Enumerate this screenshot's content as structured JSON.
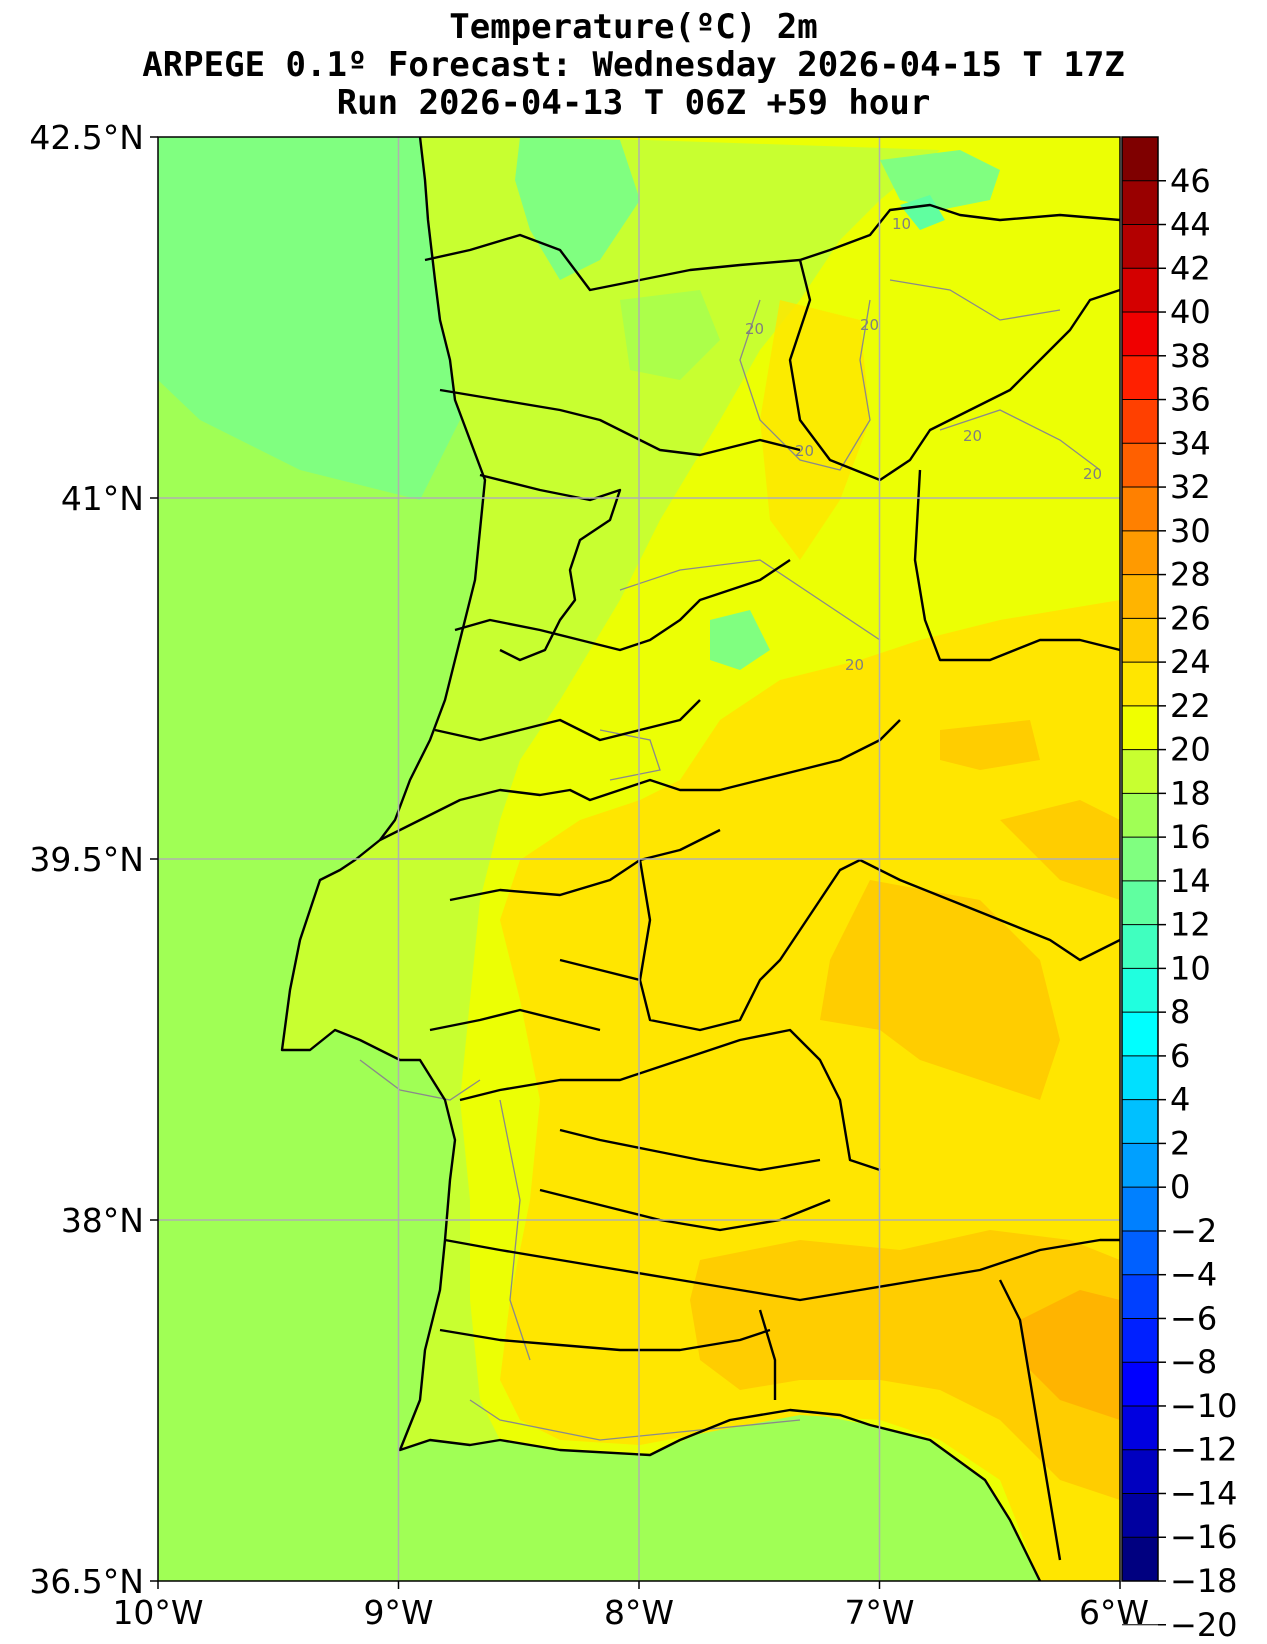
{
  "title": {
    "line1": "Temperature(ºC) 2m",
    "line2": "ARPEGE 0.1º Forecast: Wednesday 2026-04-15 T 17Z",
    "line3": "Run 2026-04-13 T 06Z +59 hour"
  },
  "axes": {
    "lat_ticks": [
      "42.5°N",
      "41°N",
      "39.5°N",
      "38°N",
      "36.5°N"
    ],
    "lon_ticks": [
      "10°W",
      "9°W",
      "8°W",
      "7°W",
      "6°W"
    ]
  },
  "colorbar": {
    "labels": [
      "46",
      "44",
      "42",
      "40",
      "38",
      "36",
      "34",
      "32",
      "30",
      "28",
      "26",
      "24",
      "22",
      "20",
      "18",
      "16",
      "14",
      "12",
      "10",
      "8",
      "6",
      "4",
      "2",
      "0",
      "−2",
      "−4",
      "−6",
      "−8",
      "−10",
      "−12",
      "−14",
      "−16",
      "−18",
      "−20"
    ],
    "colors": [
      "#7f0000",
      "#990000",
      "#b30000",
      "#d40000",
      "#f00000",
      "#ff2000",
      "#ff4000",
      "#ff6000",
      "#ff8000",
      "#ff9a00",
      "#ffb400",
      "#ffcd00",
      "#ffe600",
      "#f0ff00",
      "#c8ff30",
      "#a0ff55",
      "#80ff80",
      "#60ffa0",
      "#40ffbf",
      "#20ffdf",
      "#00ffff",
      "#00e0ff",
      "#00c0ff",
      "#00a0ff",
      "#0080ff",
      "#0060ff",
      "#0040ff",
      "#0020ff",
      "#0000ff",
      "#0000e0",
      "#0000c0",
      "#0000a0",
      "#000080"
    ]
  },
  "contour_labels": [
    "10",
    "20",
    "20",
    "20",
    "20",
    "20",
    "20"
  ],
  "palette": {
    "sea": "#a0ff55",
    "land_cool": "#c8ff30",
    "land_mid": "#f0ff00",
    "land_warm": "#ffe600",
    "land_hot": "#ffcd00",
    "land_hottest": "#ffb400",
    "cold_patch": "#80ff80",
    "coldest_patch": "#60ffa0",
    "grid": "#b0b0b0",
    "border": "#000000"
  }
}
